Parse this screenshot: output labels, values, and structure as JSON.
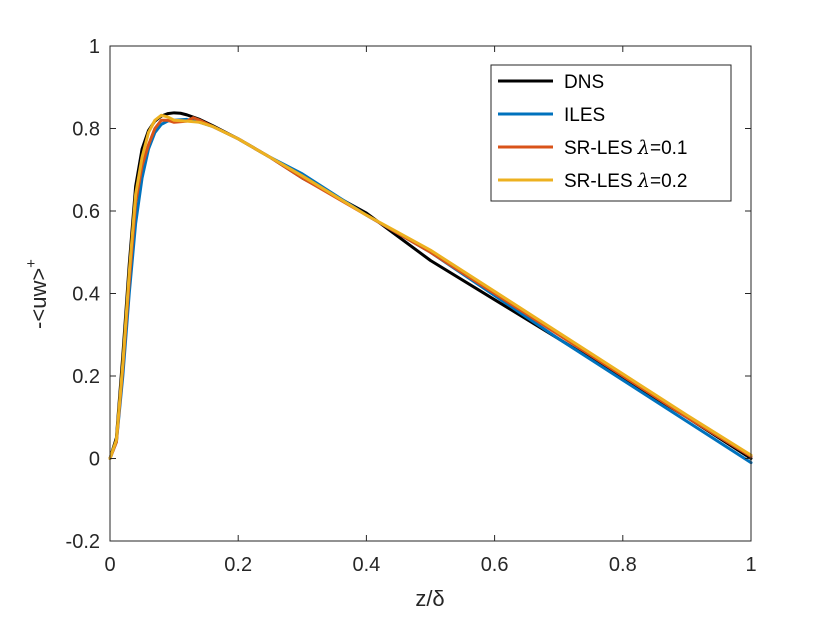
{
  "chart_data": {
    "type": "line",
    "title": "",
    "xlabel": "z/δ",
    "ylabel": "-<uw>",
    "ylabel_superscript": "+",
    "xlim": [
      0,
      1
    ],
    "ylim": [
      -0.2,
      1
    ],
    "xticks": [
      0,
      0.2,
      0.4,
      0.6,
      0.8,
      1
    ],
    "xtick_labels": [
      "0",
      "0.2",
      "0.4",
      "0.6",
      "0.8",
      "1"
    ],
    "yticks": [
      -0.2,
      0,
      0.2,
      0.4,
      0.6,
      0.8,
      1
    ],
    "ytick_labels": [
      "-0.2",
      "0",
      "0.2",
      "0.4",
      "0.6",
      "0.8",
      "1"
    ],
    "grid": false,
    "legend_position": "top-right",
    "series": [
      {
        "name": "DNS",
        "legend_prefix": "DNS",
        "legend_symbol": "",
        "legend_suffix": "",
        "color": "#000000",
        "x": [
          0,
          0.01,
          0.02,
          0.03,
          0.04,
          0.05,
          0.06,
          0.07,
          0.08,
          0.09,
          0.1,
          0.11,
          0.12,
          0.14,
          0.16,
          0.2,
          0.25,
          0.3,
          0.4,
          0.5,
          0.6,
          0.7,
          0.8,
          0.9,
          1.0
        ],
        "y": [
          0,
          0.05,
          0.25,
          0.47,
          0.66,
          0.75,
          0.795,
          0.818,
          0.83,
          0.836,
          0.838,
          0.837,
          0.833,
          0.822,
          0.807,
          0.775,
          0.73,
          0.68,
          0.595,
          0.48,
          0.385,
          0.29,
          0.195,
          0.1,
          0
        ]
      },
      {
        "name": "ILES",
        "legend_prefix": "ILES",
        "legend_symbol": "",
        "legend_suffix": "",
        "color": "#0072BD",
        "x": [
          0,
          0.01,
          0.02,
          0.03,
          0.04,
          0.05,
          0.06,
          0.07,
          0.08,
          0.09,
          0.1,
          0.12,
          0.14,
          0.16,
          0.2,
          0.25,
          0.3,
          0.4,
          0.5,
          0.6,
          0.7,
          0.8,
          0.9,
          1.0
        ],
        "y": [
          0,
          0.04,
          0.2,
          0.4,
          0.57,
          0.68,
          0.75,
          0.79,
          0.81,
          0.818,
          0.82,
          0.822,
          0.815,
          0.805,
          0.775,
          0.73,
          0.69,
          0.59,
          0.5,
          0.395,
          0.29,
          0.19,
          0.09,
          -0.01
        ]
      },
      {
        "name": "SR-LES λ=0.1",
        "legend_prefix": "SR-LES ",
        "legend_symbol": "λ",
        "legend_suffix": "=0.1",
        "color": "#D95319",
        "x": [
          0,
          0.01,
          0.02,
          0.03,
          0.04,
          0.05,
          0.06,
          0.07,
          0.08,
          0.09,
          0.1,
          0.12,
          0.13,
          0.14,
          0.16,
          0.2,
          0.25,
          0.3,
          0.4,
          0.5,
          0.6,
          0.7,
          0.8,
          0.9,
          1.0
        ],
        "y": [
          0,
          0.04,
          0.22,
          0.43,
          0.62,
          0.71,
          0.76,
          0.8,
          0.82,
          0.82,
          0.815,
          0.818,
          0.826,
          0.82,
          0.805,
          0.775,
          0.73,
          0.68,
          0.59,
          0.5,
          0.4,
          0.3,
          0.2,
          0.1,
          0.005
        ]
      },
      {
        "name": "SR-LES λ=0.2",
        "legend_prefix": "SR-LES ",
        "legend_symbol": "λ",
        "legend_suffix": "=0.2",
        "color": "#EDB120",
        "x": [
          0,
          0.01,
          0.02,
          0.03,
          0.04,
          0.05,
          0.06,
          0.07,
          0.08,
          0.09,
          0.1,
          0.12,
          0.14,
          0.16,
          0.2,
          0.25,
          0.3,
          0.4,
          0.5,
          0.6,
          0.7,
          0.8,
          0.9,
          1.0
        ],
        "y": [
          0,
          0.045,
          0.23,
          0.45,
          0.64,
          0.73,
          0.79,
          0.82,
          0.832,
          0.828,
          0.82,
          0.818,
          0.815,
          0.805,
          0.775,
          0.73,
          0.685,
          0.59,
          0.505,
          0.405,
          0.305,
          0.205,
          0.105,
          0.008
        ]
      }
    ]
  }
}
